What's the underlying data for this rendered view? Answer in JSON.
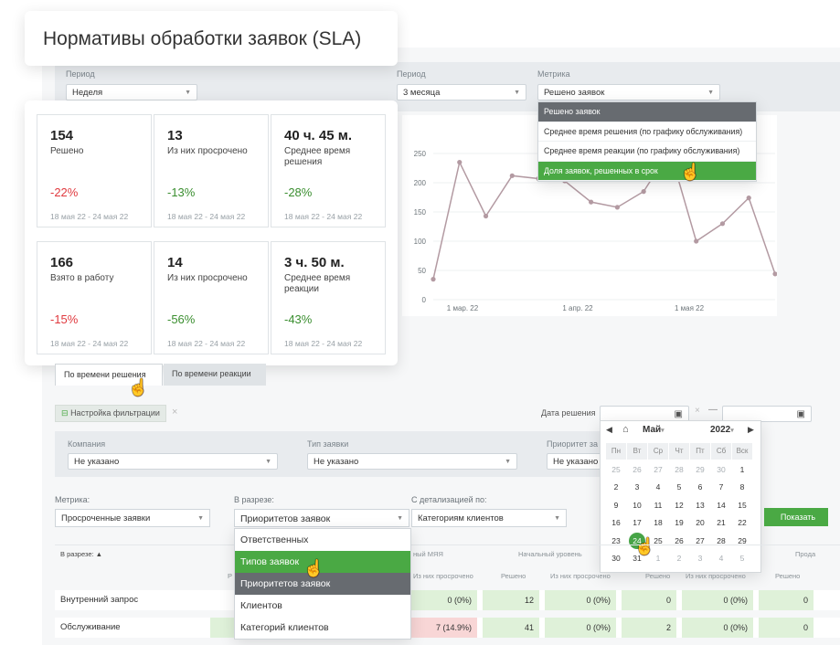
{
  "title": "Нормативы обработки заявок (SLA)",
  "left_filter": {
    "label": "Период",
    "value": "Неделя"
  },
  "right_filters": {
    "period_label": "Период",
    "period_value": "3 месяца",
    "metric_label": "Метрика",
    "metric_value": "Решено заявок"
  },
  "metric_dropdown": {
    "items": [
      "Решено заявок",
      "Среднее время решения (по графику обслуживания)",
      "Среднее время реакции (по графику обслуживания)",
      "Доля заявок, решенных в срок"
    ],
    "active_index": 0,
    "hover_index": 3
  },
  "kpis": [
    {
      "value": "154",
      "label": "Решено",
      "change": "-22%",
      "dir": "neg",
      "dates": "18 мая 22 - 24 мая 22"
    },
    {
      "value": "13",
      "label": "Из них просрочено",
      "change": "-13%",
      "dir": "pos",
      "dates": "18 мая 22 - 24 мая 22"
    },
    {
      "value": "40 ч. 45 м.",
      "label": "Среднее время решения",
      "change": "-28%",
      "dir": "pos",
      "dates": "18 мая 22 - 24 мая 22"
    },
    {
      "value": "166",
      "label": "Взято в работу",
      "change": "-15%",
      "dir": "neg",
      "dates": "18 мая 22 - 24 мая 22"
    },
    {
      "value": "14",
      "label": "Из них просрочено",
      "change": "-56%",
      "dir": "pos",
      "dates": "18 мая 22 - 24 мая 22"
    },
    {
      "value": "3 ч. 50 м.",
      "label": "Среднее время реакции",
      "change": "-43%",
      "dir": "pos",
      "dates": "18 мая 22 - 24 мая 22"
    }
  ],
  "chart_data": {
    "type": "line",
    "y_ticks": [
      "250",
      "200",
      "150",
      "100",
      "50",
      "0"
    ],
    "ylim": [
      0,
      250
    ],
    "x_ticks": [
      "1 мар. 22",
      "1 апр. 22",
      "1 мая 22"
    ],
    "series": [
      {
        "values": [
          35,
          235,
          143,
          212,
          207,
          203,
          167,
          158,
          185,
          255,
          100,
          130,
          174,
          44
        ]
      }
    ],
    "line_color": "#b39aa2"
  },
  "tabs": [
    {
      "label": "По времени решения",
      "active": true
    },
    {
      "label": "По времени реакции",
      "active": false
    }
  ],
  "filter_toggle": {
    "label": "Настройка фильтрации",
    "close": "×"
  },
  "decision_date": {
    "label": "Дата решения",
    "sep": "—"
  },
  "company_row": {
    "company_label": "Компания",
    "company_value": "Не указано",
    "type_label": "Тип заявки",
    "type_value": "Не указано",
    "priority_label": "Приоритет за",
    "priority_value": "Не указано"
  },
  "calendar": {
    "month": "Май",
    "year": "2022",
    "weekdays": [
      "Пн",
      "Вт",
      "Ср",
      "Чт",
      "Пт",
      "Сб",
      "Вск"
    ],
    "days": [
      [
        "25",
        "26",
        "27",
        "28",
        "29",
        "30",
        "1"
      ],
      [
        "2",
        "3",
        "4",
        "5",
        "6",
        "7",
        "8"
      ],
      [
        "9",
        "10",
        "11",
        "12",
        "13",
        "14",
        "15"
      ],
      [
        "16",
        "17",
        "18",
        "19",
        "20",
        "21",
        "22"
      ],
      [
        "23",
        "24",
        "25",
        "26",
        "27",
        "28",
        "29"
      ],
      [
        "30",
        "31",
        "1",
        "2",
        "3",
        "4",
        "5"
      ]
    ],
    "selected": "24"
  },
  "controls": {
    "metric_label": "Метрика:",
    "metric_value": "Просроченные заявки",
    "section_label": "В разрезе:",
    "section_value": "Приоритетов заявок",
    "detail_label": "С детализацией по:",
    "detail_value": "Категориям клиентов",
    "show_button": "Показать"
  },
  "section_dropdown": {
    "items": [
      "Ответственных",
      "Типов заявок",
      "Приоритетов заявок",
      "Клиентов",
      "Категорий клиентов"
    ],
    "hover_index": 1,
    "active_index": 2
  },
  "table": {
    "sort_header": "В разрезе: ▲",
    "group_headers": [
      "ный МЯЯ",
      "Начальный уровень",
      "Прода"
    ],
    "sub_headers": [
      "Из них просрочено",
      "Решено",
      "Из них просрочено",
      "Решено",
      "Из них просрочено",
      "Решено"
    ],
    "stub_header": "Р",
    "rows": [
      {
        "name": "Внутренний запрос",
        "cells": [
          "0 (0%)",
          "12",
          "0 (0%)",
          "0",
          "0 (0%)",
          "0"
        ]
      },
      {
        "name": "Обслуживание",
        "cells": [
          "7 (14.9%)",
          "41",
          "0 (0%)",
          "2",
          "0 (0%)",
          "0"
        ]
      }
    ]
  }
}
